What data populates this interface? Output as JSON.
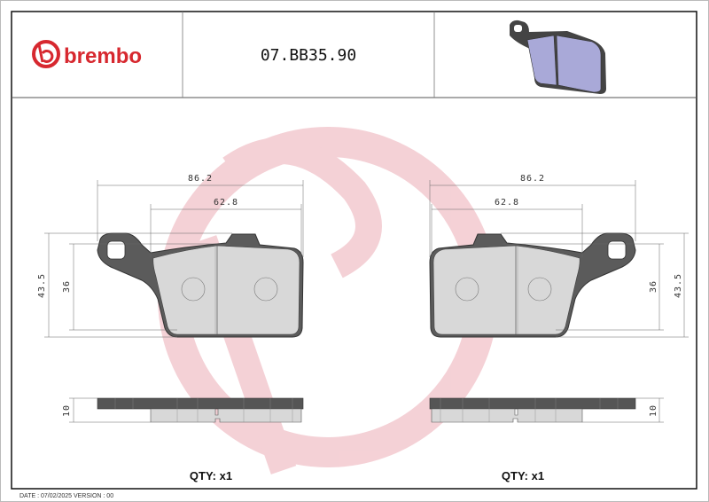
{
  "header": {
    "brand": "brembo",
    "part_number": "07.BB35.90",
    "brand_color": "#d7282f",
    "preview_icon": "brake-pad-3d-icon",
    "pad_color": "#a9a9d8"
  },
  "left_view": {
    "width_overall": "86.2",
    "width_pad": "62.8",
    "height_overall": "43.5",
    "height_pad": "36",
    "thickness": "10",
    "qty": "QTY: x1"
  },
  "right_view": {
    "width_overall": "86.2",
    "width_pad": "62.8",
    "height_overall": "43.5",
    "height_pad": "36",
    "thickness": "10",
    "qty": "QTY: x1"
  },
  "footer": {
    "date_version": "DATE : 07/02/2025 VERSION : 00"
  },
  "watermark_color": "#f3c9cf"
}
